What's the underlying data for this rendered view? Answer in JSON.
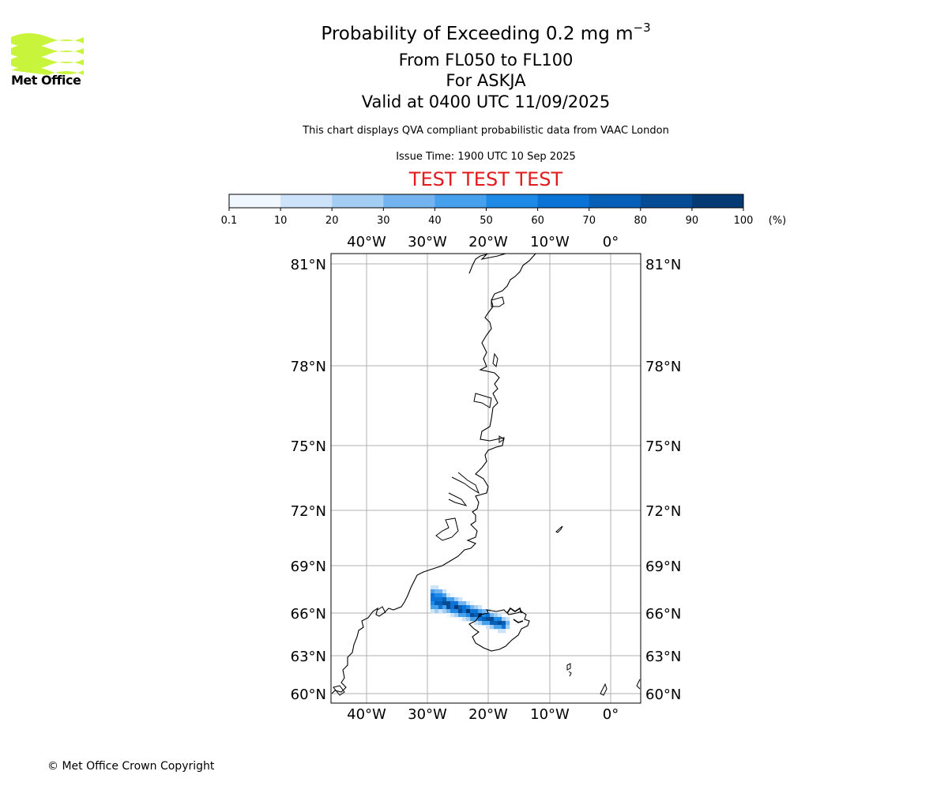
{
  "header": {
    "title_text": "Probability of Exceeding 0.2 mg m",
    "title_sup": "−3",
    "line2": "From FL050 to FL100",
    "line3": "For ASKJA",
    "line4": "Valid at 0400 UTC 11/09/2025",
    "description": "This chart displays QVA compliant probabilistic data from VAAC London",
    "issue_time": "Issue Time: 1900 UTC 10 Sep 2025",
    "test_banner": "TEST TEST TEST"
  },
  "logo": {
    "text": "Met Office",
    "color": "#c8f53c"
  },
  "colorbar": {
    "ticks": [
      "0.1",
      "10",
      "20",
      "30",
      "40",
      "50",
      "60",
      "70",
      "80",
      "90",
      "100"
    ],
    "unit": "(%)",
    "colors": [
      "#f0f7ff",
      "#cde3f9",
      "#a4cdf4",
      "#73b4f0",
      "#46a0ec",
      "#1e8ae8",
      "#0b72d6",
      "#0760b8",
      "#054b96",
      "#033a74",
      "#022a55"
    ]
  },
  "map": {
    "lon_labels": [
      "40°W",
      "30°W",
      "20°W",
      "10°W",
      "0°"
    ],
    "lat_labels": [
      "81°N",
      "78°N",
      "75°N",
      "72°N",
      "69°N",
      "66°N",
      "63°N",
      "60°N"
    ],
    "gridline_color": "#b0b0b0"
  },
  "footer": {
    "copyright": "© Met Office Crown Copyright"
  }
}
